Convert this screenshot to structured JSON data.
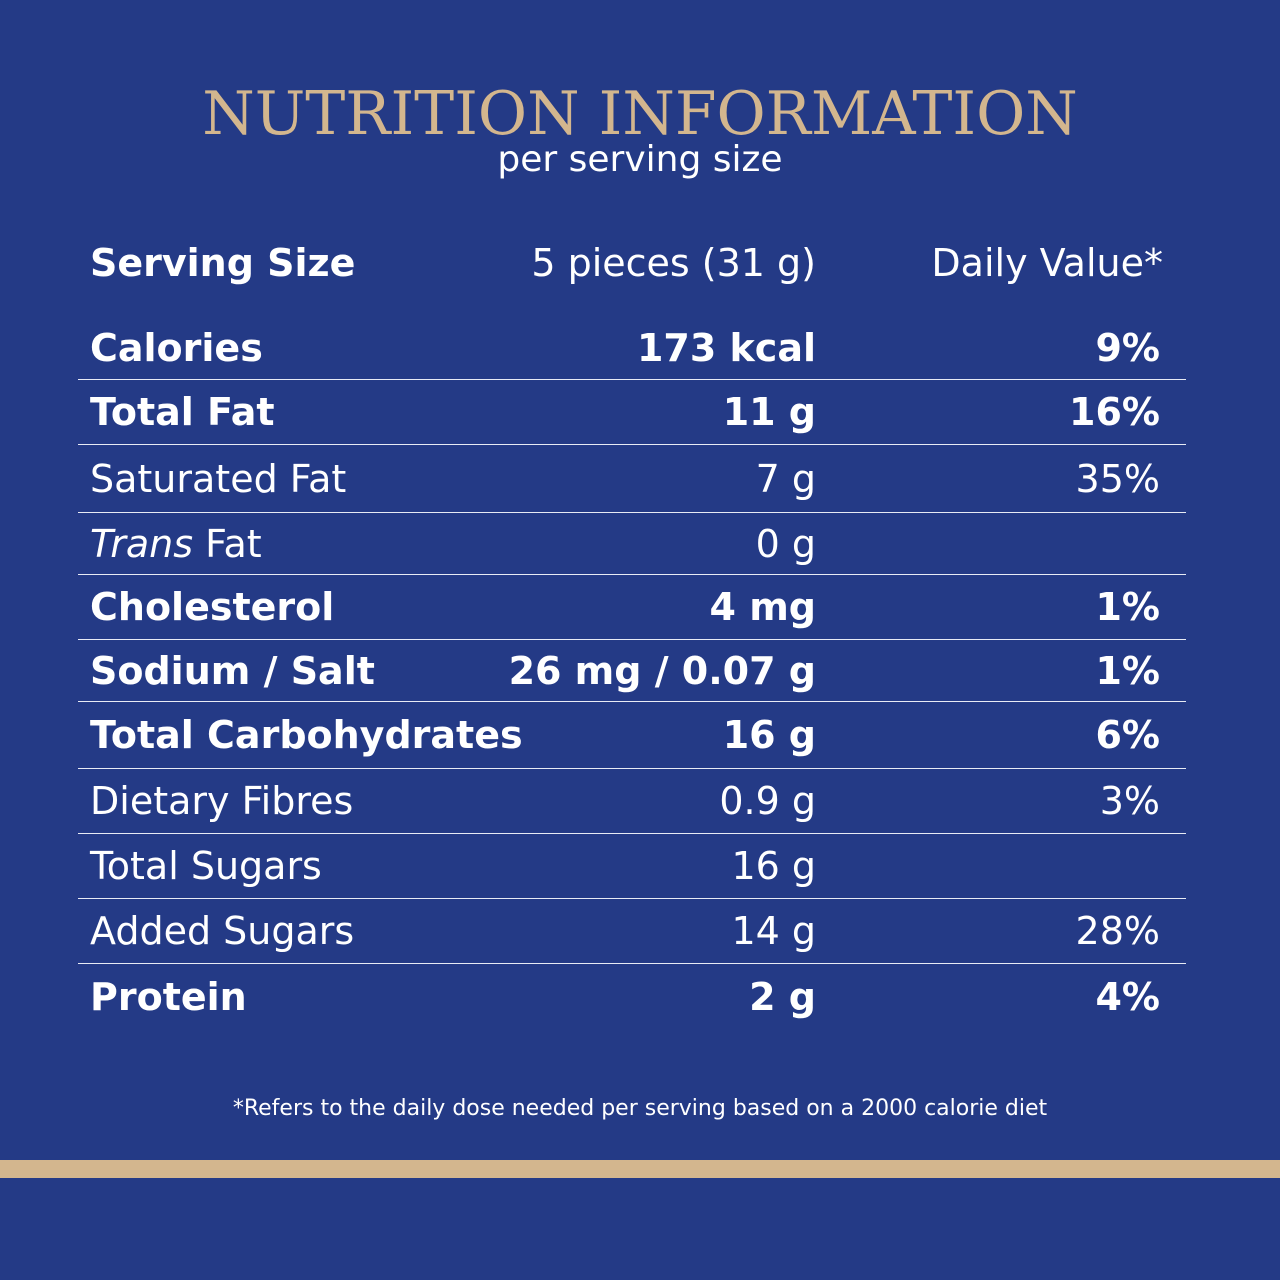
{
  "header": {
    "title": "NUTRITION INFORMATION",
    "subtitle": "per serving size"
  },
  "serving": {
    "label": "Serving Size",
    "amount": "5 pieces (31 g)",
    "dv_header": "Daily Value*"
  },
  "rows": [
    {
      "name": "Calories",
      "amount": "173 kcal",
      "dv": "9%"
    },
    {
      "name": "Total Fat",
      "amount": "11 g",
      "dv": "16%"
    },
    {
      "name": "Saturated Fat",
      "amount": "7 g",
      "dv": "35%"
    },
    {
      "name_italic": "Trans",
      "name_rest": " Fat",
      "amount": "0 g",
      "dv": ""
    },
    {
      "name": "Cholesterol",
      "amount": "4 mg",
      "dv": "1%"
    },
    {
      "name": "Sodium / Salt",
      "amount": "26 mg / 0.07 g",
      "dv": "1%"
    },
    {
      "name": "Total Carbohydrates",
      "amount": "16 g",
      "dv": "6%"
    },
    {
      "name": "Dietary Fibres",
      "amount": "0.9 g",
      "dv": "3%"
    },
    {
      "name": "Total Sugars",
      "amount": "16 g",
      "dv": ""
    },
    {
      "name": "Added Sugars",
      "amount": "14 g",
      "dv": "28%"
    },
    {
      "name": "Protein",
      "amount": "2 g",
      "dv": "4%"
    }
  ],
  "footnote": "*Refers to the daily dose needed per serving based on a 2000 calorie diet",
  "colors": {
    "background": "#243a86",
    "gold": "#d3b68e",
    "text": "#ffffff"
  }
}
